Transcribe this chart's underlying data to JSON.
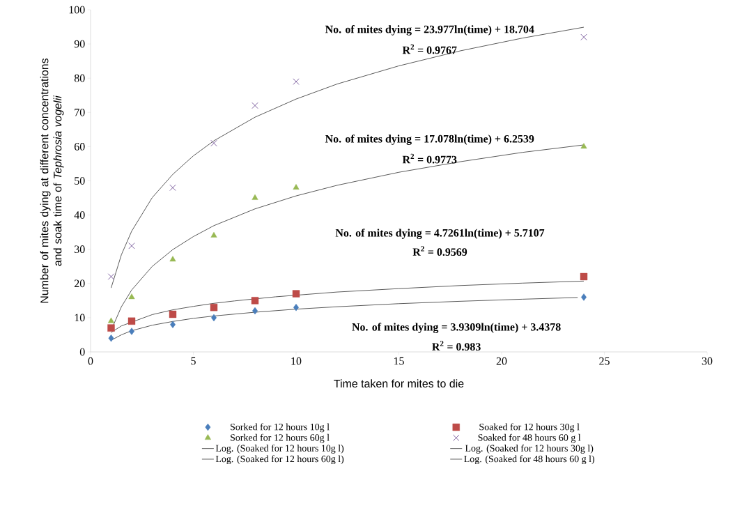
{
  "chart_data": {
    "type": "scatter",
    "xlabel": "Time taken for mites to die",
    "ylabel": "Number of mites dying at different concentrations and soak time of *Tephrosia vogelii*",
    "xlim": [
      0,
      30
    ],
    "xticks": [
      0,
      5,
      10,
      15,
      20,
      25,
      30
    ],
    "ylim": [
      0,
      100
    ],
    "yticks": [
      0,
      10,
      20,
      30,
      40,
      50,
      60,
      70,
      80,
      90,
      100
    ],
    "grid": false,
    "legend": "bottom",
    "series": [
      {
        "name": "Sorked for 12 hours 10g l",
        "color": "#4a7ebb",
        "marker": "diamond",
        "x": [
          1,
          2,
          4,
          6,
          8,
          10,
          24
        ],
        "values": [
          4,
          6,
          8,
          10,
          12,
          13,
          16
        ]
      },
      {
        "name": "Soaked for 12 hours 30g l",
        "color": "#be4b48",
        "marker": "square",
        "x": [
          1,
          2,
          4,
          6,
          8,
          10,
          24
        ],
        "values": [
          7,
          9,
          11,
          13,
          15,
          17,
          22
        ]
      },
      {
        "name": "Sorked for 12 hours 60g l",
        "color": "#98b954",
        "marker": "triangle",
        "x": [
          1,
          2,
          4,
          6,
          8,
          10,
          24
        ],
        "values": [
          9,
          16,
          27,
          34,
          45,
          48,
          60
        ]
      },
      {
        "name": "Soaked for 48 hours 60 g l",
        "color": "#7d60a0",
        "marker": "cross",
        "x": [
          1,
          2,
          4,
          6,
          8,
          10,
          24
        ],
        "values": [
          22,
          31,
          48,
          61,
          72,
          79,
          92
        ]
      },
      {
        "name": "Log. (Soaked for 12 hours 10g l)",
        "type": "line",
        "color": "#595959",
        "marker": "none",
        "line_style": "solid",
        "x": [
          1,
          1.5,
          2,
          3,
          4,
          5,
          6,
          8,
          10,
          12,
          15,
          18,
          21,
          23.7
        ],
        "values": [
          3.4,
          5.0,
          6.2,
          7.8,
          8.9,
          9.8,
          10.5,
          11.6,
          12.5,
          13.2,
          14.1,
          14.8,
          15.4,
          15.9
        ]
      },
      {
        "name": "Log. (Soaked for 12 hours 30g l)",
        "type": "line",
        "color": "#595959",
        "marker": "none",
        "line_style": "solid",
        "x": [
          1,
          1.5,
          3,
          4,
          5,
          6,
          7,
          9,
          12,
          15,
          18,
          21,
          24
        ],
        "values": [
          5.7,
          7.6,
          10.9,
          12.3,
          13.3,
          14.2,
          14.9,
          16.1,
          17.5,
          18.5,
          19.4,
          20.1,
          20.7
        ]
      },
      {
        "name": "Log. (Soaked for 12 hours 60g l)",
        "type": "line",
        "color": "#595959",
        "marker": "none",
        "line_style": "solid",
        "x": [
          1,
          1.5,
          2,
          3,
          4,
          5,
          6,
          8,
          10,
          12,
          15,
          18,
          21,
          24
        ],
        "values": [
          6.3,
          13.2,
          18.1,
          25.0,
          29.9,
          33.7,
          36.9,
          41.8,
          45.6,
          48.7,
          52.5,
          55.6,
          58.3,
          60.5
        ]
      },
      {
        "name": "Log. (Soaked for 48 hours 60 g l)",
        "type": "line",
        "color": "#595959",
        "marker": "none",
        "line_style": "solid",
        "x": [
          1,
          1.5,
          2,
          3,
          4,
          5,
          6,
          8,
          10,
          12,
          15,
          18,
          21,
          24
        ],
        "values": [
          18.7,
          28.4,
          35.3,
          45.1,
          51.9,
          57.3,
          61.7,
          68.6,
          73.9,
          78.3,
          83.6,
          88.0,
          91.7,
          94.9
        ]
      }
    ],
    "annotations": [
      "No. of mites dying = 23.977ln(time) + 18.704",
      "R$^{2}$ = 0.9767",
      "No. of mites dying = 17.078ln(time) + 6.2539",
      "R$^{2}$ = 0.9773",
      "No. of mites dying = 4.7261ln(time) + 5.7107",
      "R$^{2}$ = 0.9569",
      "No. of mites dying = 3.9309ln(time) + 3.4378",
      "R$^{2}$ = 0.983"
    ]
  }
}
